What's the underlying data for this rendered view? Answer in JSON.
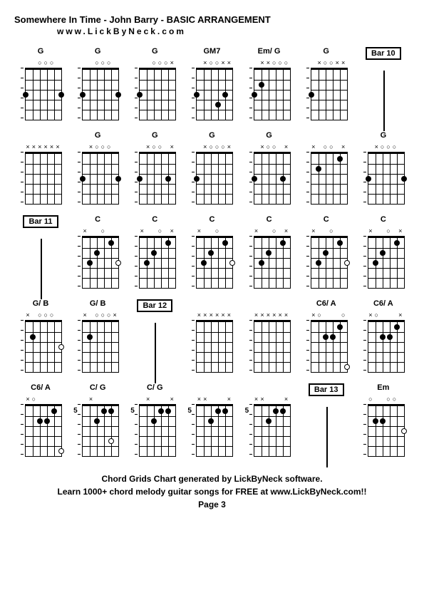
{
  "title": "Somewhere In Time - John Barry - BASIC ARRANGEMENT",
  "subtitle": "www.LickByNeck.com",
  "footer_line1": "Chord Grids Chart generated by LickByNeck software.",
  "footer_line2": "Learn 1000+ chord melody guitar songs for FREE at www.LickByNeck.com!!",
  "footer_page": "Page 3",
  "colors": {
    "background": "#ffffff",
    "line": "#000000",
    "text": "#000000"
  },
  "chord_style": {
    "strings": 6,
    "frets": 5,
    "nut_width": 3,
    "line_width": 1,
    "dot_size": 8,
    "font_size": 11
  },
  "cells": [
    {
      "row": 0,
      "col": 0,
      "label": "G",
      "type": "chord",
      "markers": [
        "",
        "",
        "o",
        "o",
        "o",
        ""
      ],
      "dots": [
        {
          "s": 0,
          "f": 3,
          "o": false
        },
        {
          "s": 5,
          "f": 3,
          "o": false
        }
      ],
      "fret": null
    },
    {
      "row": 0,
      "col": 1,
      "label": "G",
      "type": "chord",
      "markers": [
        "",
        "",
        "o",
        "o",
        "o",
        ""
      ],
      "dots": [
        {
          "s": 0,
          "f": 3,
          "o": false
        },
        {
          "s": 5,
          "f": 3,
          "o": false
        }
      ],
      "fret": null
    },
    {
      "row": 0,
      "col": 2,
      "label": "G",
      "type": "chord",
      "markers": [
        "",
        "",
        "o",
        "o",
        "o",
        "x"
      ],
      "dots": [
        {
          "s": 0,
          "f": 3,
          "o": false
        }
      ],
      "fret": null
    },
    {
      "row": 0,
      "col": 3,
      "label": "GM7",
      "type": "chord",
      "markers": [
        "",
        "x",
        "o",
        "o",
        "x",
        "x"
      ],
      "dots": [
        {
          "s": 0,
          "f": 3,
          "o": false
        },
        {
          "s": 3,
          "f": 4,
          "o": false
        },
        {
          "s": 4,
          "f": 3,
          "o": false
        }
      ],
      "fret": null
    },
    {
      "row": 0,
      "col": 4,
      "label": "Em/ G",
      "type": "chord",
      "markers": [
        "",
        "x",
        "x",
        "o",
        "o",
        "o"
      ],
      "dots": [
        {
          "s": 0,
          "f": 3,
          "o": false
        },
        {
          "s": 1,
          "f": 2,
          "o": false
        }
      ],
      "fret": null
    },
    {
      "row": 0,
      "col": 5,
      "label": "G",
      "type": "chord",
      "markers": [
        "",
        "x",
        "o",
        "o",
        "x",
        "x"
      ],
      "dots": [
        {
          "s": 0,
          "f": 3,
          "o": false
        }
      ],
      "fret": null
    },
    {
      "row": 0,
      "col": 6,
      "label": "Bar 10",
      "type": "bar"
    },
    {
      "row": 1,
      "col": 0,
      "label": "",
      "type": "chord",
      "markers": [
        "x",
        "x",
        "x",
        "x",
        "x",
        "x"
      ],
      "dots": [],
      "fret": null
    },
    {
      "row": 1,
      "col": 1,
      "label": "G",
      "type": "chord",
      "markers": [
        "",
        "x",
        "o",
        "o",
        "o",
        ""
      ],
      "dots": [
        {
          "s": 0,
          "f": 3,
          "o": false
        },
        {
          "s": 5,
          "f": 3,
          "o": false
        }
      ],
      "fret": null
    },
    {
      "row": 1,
      "col": 2,
      "label": "G",
      "type": "chord",
      "markers": [
        "",
        "x",
        "o",
        "o",
        "",
        "x"
      ],
      "dots": [
        {
          "s": 0,
          "f": 3,
          "o": false
        },
        {
          "s": 4,
          "f": 3,
          "o": false
        }
      ],
      "fret": null
    },
    {
      "row": 1,
      "col": 3,
      "label": "G",
      "type": "chord",
      "markers": [
        "",
        "x",
        "o",
        "o",
        "o",
        "x"
      ],
      "dots": [
        {
          "s": 0,
          "f": 3,
          "o": false
        }
      ],
      "fret": null
    },
    {
      "row": 1,
      "col": 4,
      "label": "G",
      "type": "chord",
      "markers": [
        "",
        "x",
        "o",
        "o",
        "",
        "x"
      ],
      "dots": [
        {
          "s": 0,
          "f": 3,
          "o": false
        },
        {
          "s": 4,
          "f": 3,
          "o": false
        }
      ],
      "fret": null
    },
    {
      "row": 1,
      "col": 5,
      "label": "",
      "type": "chord",
      "markers": [
        "x",
        "",
        "o",
        "o",
        "",
        "x"
      ],
      "dots": [
        {
          "s": 1,
          "f": 2,
          "o": false
        },
        {
          "s": 4,
          "f": 1,
          "o": false
        }
      ],
      "fret": null
    },
    {
      "row": 1,
      "col": 6,
      "label": "G",
      "type": "chord",
      "markers": [
        "",
        "x",
        "o",
        "o",
        "o",
        ""
      ],
      "dots": [
        {
          "s": 0,
          "f": 3,
          "o": false
        },
        {
          "s": 5,
          "f": 3,
          "o": false
        }
      ],
      "fret": null
    },
    {
      "row": 2,
      "col": 0,
      "label": "Bar 11",
      "type": "bar"
    },
    {
      "row": 2,
      "col": 1,
      "label": "C",
      "type": "chord",
      "markers": [
        "x",
        "",
        "",
        "o",
        "",
        ""
      ],
      "dots": [
        {
          "s": 1,
          "f": 3,
          "o": false
        },
        {
          "s": 2,
          "f": 2,
          "o": false
        },
        {
          "s": 4,
          "f": 1,
          "o": false
        },
        {
          "s": 5,
          "f": 3,
          "o": true
        }
      ],
      "fret": null
    },
    {
      "row": 2,
      "col": 2,
      "label": "C",
      "type": "chord",
      "markers": [
        "x",
        "",
        "",
        "o",
        "",
        "x"
      ],
      "dots": [
        {
          "s": 1,
          "f": 3,
          "o": false
        },
        {
          "s": 2,
          "f": 2,
          "o": false
        },
        {
          "s": 4,
          "f": 1,
          "o": false
        }
      ],
      "fret": null
    },
    {
      "row": 2,
      "col": 3,
      "label": "C",
      "type": "chord",
      "markers": [
        "x",
        "",
        "",
        "o",
        "",
        ""
      ],
      "dots": [
        {
          "s": 1,
          "f": 3,
          "o": false
        },
        {
          "s": 2,
          "f": 2,
          "o": false
        },
        {
          "s": 4,
          "f": 1,
          "o": false
        },
        {
          "s": 5,
          "f": 3,
          "o": true
        }
      ],
      "fret": null
    },
    {
      "row": 2,
      "col": 4,
      "label": "C",
      "type": "chord",
      "markers": [
        "x",
        "",
        "",
        "o",
        "",
        "x"
      ],
      "dots": [
        {
          "s": 1,
          "f": 3,
          "o": false
        },
        {
          "s": 2,
          "f": 2,
          "o": false
        },
        {
          "s": 4,
          "f": 1,
          "o": false
        }
      ],
      "fret": null
    },
    {
      "row": 2,
      "col": 5,
      "label": "C",
      "type": "chord",
      "markers": [
        "x",
        "",
        "",
        "o",
        "",
        ""
      ],
      "dots": [
        {
          "s": 1,
          "f": 3,
          "o": false
        },
        {
          "s": 2,
          "f": 2,
          "o": false
        },
        {
          "s": 4,
          "f": 1,
          "o": false
        },
        {
          "s": 5,
          "f": 3,
          "o": true
        }
      ],
      "fret": null
    },
    {
      "row": 2,
      "col": 6,
      "label": "C",
      "type": "chord",
      "markers": [
        "x",
        "",
        "",
        "o",
        "",
        "x"
      ],
      "dots": [
        {
          "s": 1,
          "f": 3,
          "o": false
        },
        {
          "s": 2,
          "f": 2,
          "o": false
        },
        {
          "s": 4,
          "f": 1,
          "o": false
        }
      ],
      "fret": null
    },
    {
      "row": 3,
      "col": 0,
      "label": "G/ B",
      "type": "chord",
      "markers": [
        "x",
        "",
        "o",
        "o",
        "o",
        ""
      ],
      "dots": [
        {
          "s": 1,
          "f": 2,
          "o": false
        },
        {
          "s": 5,
          "f": 3,
          "o": true
        }
      ],
      "fret": null
    },
    {
      "row": 3,
      "col": 1,
      "label": "G/ B",
      "type": "chord",
      "markers": [
        "x",
        "",
        "o",
        "o",
        "o",
        "x"
      ],
      "dots": [
        {
          "s": 1,
          "f": 2,
          "o": false
        }
      ],
      "fret": null
    },
    {
      "row": 3,
      "col": 2,
      "label": "Bar 12",
      "type": "bar"
    },
    {
      "row": 3,
      "col": 3,
      "label": "",
      "type": "chord",
      "markers": [
        "x",
        "x",
        "x",
        "x",
        "x",
        "x"
      ],
      "dots": [],
      "fret": null
    },
    {
      "row": 3,
      "col": 4,
      "label": "",
      "type": "chord",
      "markers": [
        "x",
        "x",
        "x",
        "x",
        "x",
        "x"
      ],
      "dots": [],
      "fret": null
    },
    {
      "row": 3,
      "col": 5,
      "label": "C6/ A",
      "type": "chord",
      "markers": [
        "x",
        "o",
        "",
        "",
        "",
        "o"
      ],
      "dots": [
        {
          "s": 2,
          "f": 2,
          "o": false
        },
        {
          "s": 3,
          "f": 2,
          "o": false
        },
        {
          "s": 4,
          "f": 1,
          "o": false
        },
        {
          "s": 5,
          "f": 5,
          "o": true
        }
      ],
      "fret": null
    },
    {
      "row": 3,
      "col": 6,
      "label": "C6/ A",
      "type": "chord",
      "markers": [
        "x",
        "o",
        "",
        "",
        "",
        "x"
      ],
      "dots": [
        {
          "s": 2,
          "f": 2,
          "o": false
        },
        {
          "s": 3,
          "f": 2,
          "o": false
        },
        {
          "s": 4,
          "f": 1,
          "o": false
        }
      ],
      "fret": null
    },
    {
      "row": 4,
      "col": 0,
      "label": "C6/ A",
      "type": "chord",
      "markers": [
        "x",
        "o",
        "",
        "",
        "",
        ""
      ],
      "dots": [
        {
          "s": 2,
          "f": 2,
          "o": false
        },
        {
          "s": 3,
          "f": 2,
          "o": false
        },
        {
          "s": 4,
          "f": 1,
          "o": false
        },
        {
          "s": 5,
          "f": 5,
          "o": true
        }
      ],
      "fret": null
    },
    {
      "row": 4,
      "col": 1,
      "label": "C/ G",
      "type": "chord",
      "markers": [
        "",
        "x",
        "",
        "",
        "",
        " "
      ],
      "dots": [
        {
          "s": 2,
          "f": 2,
          "o": false
        },
        {
          "s": 3,
          "f": 1,
          "o": false
        },
        {
          "s": 4,
          "f": 1,
          "o": false
        },
        {
          "s": 4,
          "f": 4,
          "o": true
        }
      ],
      "fret": "5"
    },
    {
      "row": 4,
      "col": 2,
      "label": "C/ G",
      "type": "chord",
      "markers": [
        "",
        "x",
        "",
        "",
        "",
        "x"
      ],
      "dots": [
        {
          "s": 2,
          "f": 2,
          "o": false
        },
        {
          "s": 3,
          "f": 1,
          "o": false
        },
        {
          "s": 4,
          "f": 1,
          "o": false
        }
      ],
      "fret": "5"
    },
    {
      "row": 4,
      "col": 3,
      "label": "",
      "type": "chord",
      "markers": [
        "x",
        "x",
        "",
        "",
        "",
        "x"
      ],
      "dots": [
        {
          "s": 2,
          "f": 2,
          "o": false
        },
        {
          "s": 3,
          "f": 1,
          "o": false
        },
        {
          "s": 4,
          "f": 1,
          "o": false
        }
      ],
      "fret": "5"
    },
    {
      "row": 4,
      "col": 4,
      "label": "",
      "type": "chord",
      "markers": [
        "x",
        "x",
        "",
        "",
        "",
        "x"
      ],
      "dots": [
        {
          "s": 2,
          "f": 2,
          "o": false
        },
        {
          "s": 3,
          "f": 1,
          "o": false
        },
        {
          "s": 4,
          "f": 1,
          "o": false
        }
      ],
      "fret": "5"
    },
    {
      "row": 4,
      "col": 5,
      "label": "Bar 13",
      "type": "bar"
    },
    {
      "row": 4,
      "col": 6,
      "label": "Em",
      "type": "chord",
      "markers": [
        "o",
        "",
        "",
        "o",
        "o",
        ""
      ],
      "dots": [
        {
          "s": 1,
          "f": 2,
          "o": false
        },
        {
          "s": 2,
          "f": 2,
          "o": false
        },
        {
          "s": 5,
          "f": 3,
          "o": true
        }
      ],
      "fret": null
    }
  ]
}
